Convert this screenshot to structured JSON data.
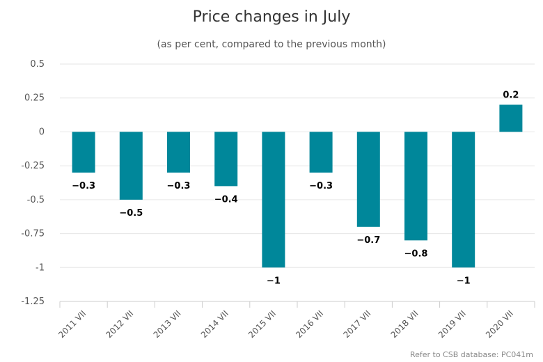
{
  "chart_data": {
    "type": "bar",
    "title": "Price changes in July",
    "subtitle": "(as per cent, compared to the previous month)",
    "categories": [
      "2011 VII",
      "2012 VII",
      "2013 VII",
      "2014 VII",
      "2015 VII",
      "2016 VII",
      "2017 VII",
      "2018 VII",
      "2019 VII",
      "2020 VII"
    ],
    "values": [
      -0.3,
      -0.5,
      -0.3,
      -0.4,
      -1,
      -0.3,
      -0.7,
      -0.8,
      -1,
      0.2
    ],
    "data_labels": [
      "−0.3",
      "−0.5",
      "−0.3",
      "−0.4",
      "−1",
      "−0.3",
      "−0.7",
      "−0.8",
      "−1",
      "0.2"
    ],
    "yticks": [
      "0.5",
      "0.25",
      "0",
      "-0.25",
      "-0.5",
      "-0.75",
      "-1",
      "-1.25"
    ],
    "ytick_values": [
      0.5,
      0.25,
      0,
      -0.25,
      -0.5,
      -0.75,
      -1,
      -1.25
    ],
    "ylim": [
      -1.25,
      0.5
    ],
    "grid": true,
    "legend": "none",
    "bar_color": "#00879a",
    "credit": "Refer to CSB database: PC041m"
  }
}
